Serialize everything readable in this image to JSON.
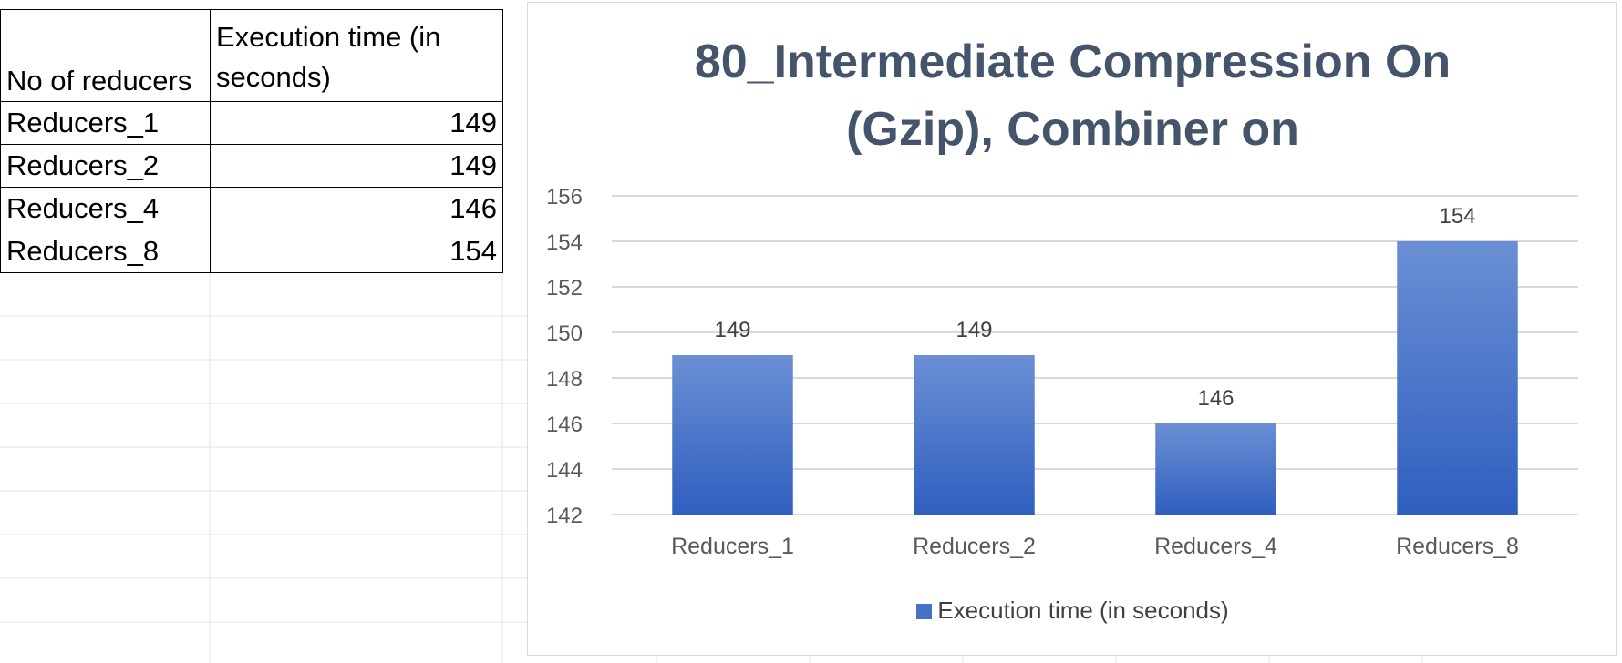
{
  "table": {
    "header": [
      "No of reducers",
      "Execution time (in seconds)"
    ],
    "rows": [
      {
        "label": "Reducers_1",
        "value": "149"
      },
      {
        "label": "Reducers_2",
        "value": "149"
      },
      {
        "label": "Reducers_4",
        "value": "146"
      },
      {
        "label": "Reducers_8",
        "value": "154"
      }
    ]
  },
  "colors": {
    "bar_top": "#6a8fd4",
    "bar_bottom": "#2f5fbf",
    "title": "#44546a",
    "gridline": "#d9d9d9",
    "axis_text": "#595959"
  },
  "chart_data": {
    "type": "bar",
    "title": "80_Intermediate Compression On (Gzip), Combiner on",
    "title_lines": [
      "80_Intermediate Compression On",
      "(Gzip), Combiner on"
    ],
    "categories": [
      "Reducers_1",
      "Reducers_2",
      "Reducers_4",
      "Reducers_8"
    ],
    "series": [
      {
        "name": "Execution time (in seconds)",
        "values": [
          149,
          149,
          146,
          154
        ]
      }
    ],
    "data_labels": [
      "149",
      "149",
      "146",
      "154"
    ],
    "ylim": [
      142,
      156
    ],
    "yticks": [
      142,
      144,
      146,
      148,
      150,
      152,
      154,
      156
    ],
    "grid": true,
    "legend": "bottom",
    "xlabel": "",
    "ylabel": ""
  }
}
